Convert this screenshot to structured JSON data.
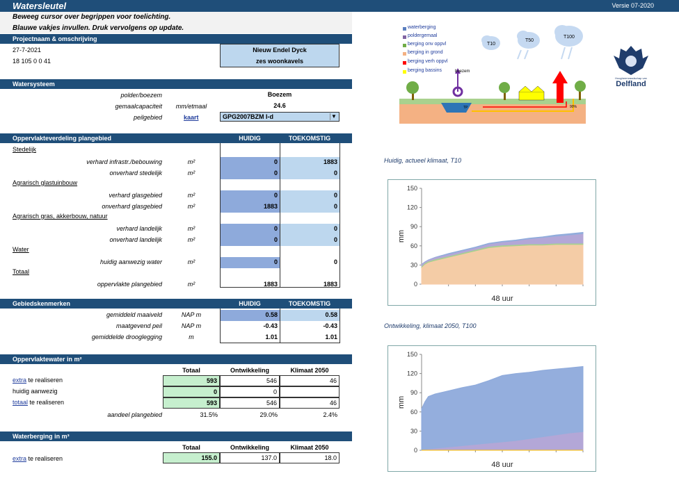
{
  "app": {
    "title": "Watersleutel",
    "version": "Versie 07-2020"
  },
  "instructions": {
    "line1": "Beweeg cursor over begrippen voor toelichting.",
    "line2": "Blauwe vakjes invullen. Druk vervolgens op update."
  },
  "project": {
    "header": "Projectnaam & omschrijving",
    "date": "27-7-2021",
    "code": "18 105 0 0 41",
    "name": "Nieuw Endel Dyck",
    "description": "zes woonkavels"
  },
  "watersysteem": {
    "header": "Watersysteem",
    "rows": [
      {
        "label": "polder/boezem",
        "unit": "",
        "value": "Boezem"
      },
      {
        "label": "gemaalcapaciteit",
        "unit": "mm/etmaal",
        "value": "24.6"
      },
      {
        "label": "peilgebied",
        "link": "kaart",
        "value": "GPG2007BZM I-d"
      }
    ]
  },
  "oppervlakte": {
    "header": "Oppervlakteverdeling plangebied",
    "col1": "HUIDIG",
    "col2": "TOEKOMSTIG",
    "groups": [
      {
        "name": "Stedelijk",
        "rows": [
          {
            "label": "verhard infrastr./bebouwing",
            "unit": "m²",
            "huidig": "0",
            "toekomstig": "1883"
          },
          {
            "label": "onverhard stedelijk",
            "unit": "m²",
            "huidig": "0",
            "toekomstig": "0"
          }
        ]
      },
      {
        "name": "Agrarisch glastuinbouw",
        "rows": [
          {
            "label": "verhard glasgebied",
            "unit": "m²",
            "huidig": "0",
            "toekomstig": "0"
          },
          {
            "label": "onverhard glasgebied",
            "unit": "m²",
            "huidig": "1883",
            "toekomstig": "0"
          }
        ]
      },
      {
        "name": "Agrarisch gras, akkerbouw, natuur",
        "rows": [
          {
            "label": "verhard landelijk",
            "unit": "m²",
            "huidig": "0",
            "toekomstig": "0"
          },
          {
            "label": "onverhard landelijk",
            "unit": "m²",
            "huidig": "0",
            "toekomstig": "0"
          }
        ]
      },
      {
        "name": "Water",
        "rows": [
          {
            "label": "huidig aanwezig water",
            "unit": "m²",
            "huidig": "0",
            "toekomstig": "0"
          }
        ]
      },
      {
        "name": "Totaal",
        "rows": [
          {
            "label": "oppervlakte plangebied",
            "unit": "m²",
            "huidig": "1883",
            "toekomstig": "1883"
          }
        ]
      }
    ]
  },
  "gebied": {
    "header": "Gebiedskenmerken",
    "col1": "HUIDIG",
    "col2": "TOEKOMSTIG",
    "rows": [
      {
        "label": "gemiddeld maaiveld",
        "unit": "NAP m",
        "huidig": "0.58",
        "toekomstig": "0.58"
      },
      {
        "label": "maatgevend peil",
        "unit": "NAP m",
        "huidig": "-0.43",
        "toekomstig": "-0.43"
      },
      {
        "label": "gemiddelde drooglegging",
        "unit": "m",
        "huidig": "1.01",
        "toekomstig": "1.01"
      }
    ]
  },
  "oppwater": {
    "header": "Oppervlaktewater in m²",
    "col1": "Totaal",
    "col2": "Ontwikkeling",
    "col3": "Klimaat 2050",
    "rows": [
      {
        "link": "extra",
        "label": " te realiseren",
        "totaal": "593",
        "ontw": "546",
        "klimaat": "46"
      },
      {
        "label": "huidig aanwezig",
        "totaal": "0",
        "ontw": "0",
        "klimaat": ""
      },
      {
        "link": "totaal",
        "label": " te realiseren",
        "totaal": "593",
        "ontw": "546",
        "klimaat": "46"
      }
    ],
    "aandeel": {
      "label": "aandeel plangebied",
      "totaal": "31.5%",
      "ontw": "29.0%",
      "klimaat": "2.4%"
    }
  },
  "waterberging": {
    "header": "Waterberging in m³",
    "col1": "Totaal",
    "col2": "Ontwikkeling",
    "col3": "Klimaat 2050",
    "row": {
      "link": "extra",
      "label": " te realiseren",
      "totaal": "155.0",
      "ontw": "137.0",
      "klimaat": "18.0"
    }
  },
  "diagram": {
    "legend": [
      "waterberging",
      "poldergemaal",
      "berging onv oppvl",
      "berging in grond",
      "berging verh oppvl",
      "berging bassins"
    ],
    "clouds": [
      "T10",
      "T50",
      "T100"
    ],
    "labels": {
      "boezem": "boezem",
      "tp": "TP",
      "pct": "90%"
    }
  },
  "logo": {
    "line1": "Hoogheemraadschap van",
    "line2": "Delfland"
  },
  "chart_data": [
    {
      "type": "area",
      "title": "Huidig, actueel klimaat, T10",
      "xlabel": "48 uur",
      "ylabel": "mm",
      "ylim": [
        0,
        150
      ],
      "yticks": [
        0,
        30,
        60,
        90,
        120,
        150
      ],
      "x": [
        0,
        1,
        2,
        4,
        8,
        12,
        16,
        20,
        24,
        28,
        32,
        36,
        40,
        44,
        48
      ],
      "series": [
        {
          "name": "berging in grond",
          "color": "#f8cba8",
          "values": [
            25,
            30,
            33,
            36,
            41,
            46,
            51,
            56,
            58,
            59,
            60,
            60,
            61,
            61,
            61
          ]
        },
        {
          "name": "berging onv oppvl",
          "color": "#a9d18e",
          "values": [
            27,
            32,
            35,
            38,
            43,
            48,
            53,
            58,
            60,
            61,
            62,
            62,
            63,
            63,
            63
          ]
        },
        {
          "name": "poldergemaal",
          "color": "#b4a7d6",
          "values": [
            30,
            34,
            37,
            41,
            46,
            51,
            56,
            62,
            65,
            67,
            70,
            72,
            74,
            76,
            78
          ]
        },
        {
          "name": "waterberging",
          "color": "#8eaadb",
          "values": [
            31,
            35,
            38,
            42,
            48,
            53,
            58,
            64,
            67,
            69,
            72,
            74,
            77,
            79,
            81
          ]
        }
      ]
    },
    {
      "type": "area",
      "title": "Ontwikkeling, klimaat 2050, T100",
      "xlabel": "48 uur",
      "ylabel": "mm",
      "ylim": [
        0,
        150
      ],
      "yticks": [
        0,
        30,
        60,
        90,
        120,
        150
      ],
      "x": [
        0,
        1,
        2,
        4,
        8,
        12,
        16,
        20,
        24,
        28,
        32,
        36,
        40,
        44,
        48
      ],
      "series": [
        {
          "name": "berging verh oppvl",
          "color": "#ffc000",
          "values": [
            0,
            0,
            0,
            0,
            0,
            0,
            0,
            0,
            0,
            0,
            0,
            0,
            0,
            0,
            0
          ]
        },
        {
          "name": "poldergemaal",
          "color": "#b4a7d6",
          "values": [
            0,
            0.5,
            1,
            2,
            4,
            6,
            8,
            10,
            12,
            14,
            17,
            20,
            23,
            26,
            28
          ]
        },
        {
          "name": "waterberging",
          "color": "#8eaadb",
          "values": [
            65,
            76,
            84,
            88,
            93,
            98,
            102,
            109,
            117,
            120,
            122,
            125,
            127,
            129,
            131
          ]
        }
      ]
    }
  ]
}
